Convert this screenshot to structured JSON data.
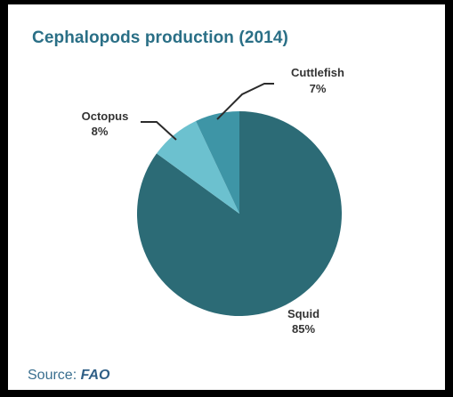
{
  "chart_data": {
    "type": "pie",
    "title": "Cephalopods production (2014)",
    "slices": [
      {
        "label": "Squid",
        "value": 85,
        "value_text": "85%",
        "color": "#2c6b76"
      },
      {
        "label": "Octopus",
        "value": 8,
        "value_text": "8%",
        "color": "#6cc1cf"
      },
      {
        "label": "Cuttlefish",
        "value": 7,
        "value_text": "7%",
        "color": "#3e95a6"
      }
    ],
    "legend": "none",
    "data_labels": "outside"
  },
  "source": {
    "prefix": "Source",
    "name": "FAO"
  }
}
